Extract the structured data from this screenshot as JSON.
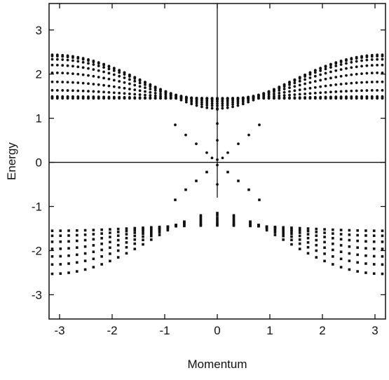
{
  "chart_data": {
    "type": "scatter",
    "title": "",
    "xlabel": "Momentum",
    "ylabel": "Energy",
    "xlim": [
      -3.2,
      3.2
    ],
    "ylim": [
      -3.55,
      3.6
    ],
    "xticks": [
      -3,
      -2,
      -1,
      0,
      1,
      2,
      3
    ],
    "yticks": [
      -3,
      -2,
      -1,
      0,
      1,
      2,
      3
    ],
    "xtick_labels": [
      "-3",
      "-2",
      "-1",
      "0",
      "1",
      "2",
      "3"
    ],
    "ytick_labels": [
      "-3",
      "-2",
      "-1",
      "0",
      "1",
      "2",
      "3"
    ],
    "reference_lines": [
      {
        "orientation": "horizontal",
        "value": 0
      },
      {
        "orientation": "vertical",
        "value": 0,
        "y_range": [
          -0.8,
          3.6
        ]
      }
    ],
    "grid": false,
    "legend": "none",
    "marker_color": "#111111",
    "series": [
      {
        "branch": "upper",
        "kind": "band",
        "params": [
          1.22,
          2.11
        ]
      },
      {
        "branch": "upper",
        "kind": "band",
        "params": [
          1.28,
          2.04
        ]
      },
      {
        "branch": "upper",
        "kind": "band",
        "params": [
          1.33,
          1.92
        ]
      },
      {
        "branch": "upper",
        "kind": "band",
        "params": [
          1.38,
          1.72
        ]
      },
      {
        "branch": "upper",
        "kind": "band",
        "params": [
          1.42,
          1.45
        ]
      },
      {
        "branch": "upper",
        "kind": "band",
        "params": [
          1.44,
          1.12
        ]
      },
      {
        "branch": "upper",
        "kind": "band",
        "params": [
          1.45,
          0.75
        ]
      },
      {
        "branch": "upper",
        "kind": "band",
        "params": [
          1.45,
          0.35
        ]
      },
      {
        "branch": "upper",
        "kind": "band",
        "params": [
          1.45,
          0.05
        ]
      },
      {
        "branch": "upper",
        "kind": "band",
        "params": [
          1.45,
          -0.2
        ]
      },
      {
        "branch": "upper",
        "kind": "cone",
        "points": [
          [
            -0.8,
            0.85
          ],
          [
            -0.6,
            0.62
          ],
          [
            -0.4,
            0.42
          ],
          [
            -0.2,
            0.22
          ],
          [
            -0.1,
            0.1
          ],
          [
            0.1,
            0.1
          ],
          [
            0.2,
            0.22
          ],
          [
            0.4,
            0.42
          ],
          [
            0.6,
            0.62
          ],
          [
            0.8,
            0.85
          ]
        ]
      },
      {
        "branch": "upper",
        "kind": "center",
        "points": [
          [
            0,
            1.2
          ],
          [
            0,
            0.88
          ],
          [
            0,
            0.5
          ],
          [
            0,
            0.06
          ],
          [
            0,
            -0.06
          ],
          [
            0,
            -0.5
          ]
        ]
      },
      {
        "branch": "lower",
        "kind": "band",
        "params": [
          1.15,
          2.25
        ]
      },
      {
        "branch": "lower",
        "kind": "band",
        "params": [
          1.2,
          1.98
        ]
      },
      {
        "branch": "lower",
        "kind": "band",
        "params": [
          1.26,
          1.72
        ]
      },
      {
        "branch": "lower",
        "kind": "band",
        "params": [
          1.31,
          1.46
        ]
      },
      {
        "branch": "lower",
        "kind": "band",
        "params": [
          1.36,
          1.18
        ]
      },
      {
        "branch": "lower",
        "kind": "band",
        "params": [
          1.4,
          0.9
        ]
      },
      {
        "branch": "lower",
        "kind": "band",
        "params": [
          1.43,
          0.6
        ]
      },
      {
        "branch": "lower",
        "kind": "cone",
        "points": [
          [
            -0.8,
            -0.85
          ],
          [
            -0.6,
            -0.62
          ],
          [
            -0.4,
            -0.42
          ],
          [
            -0.2,
            -0.22
          ],
          [
            0.2,
            -0.22
          ],
          [
            0.4,
            -0.42
          ],
          [
            0.6,
            -0.62
          ],
          [
            0.8,
            -0.85
          ]
        ]
      }
    ]
  }
}
